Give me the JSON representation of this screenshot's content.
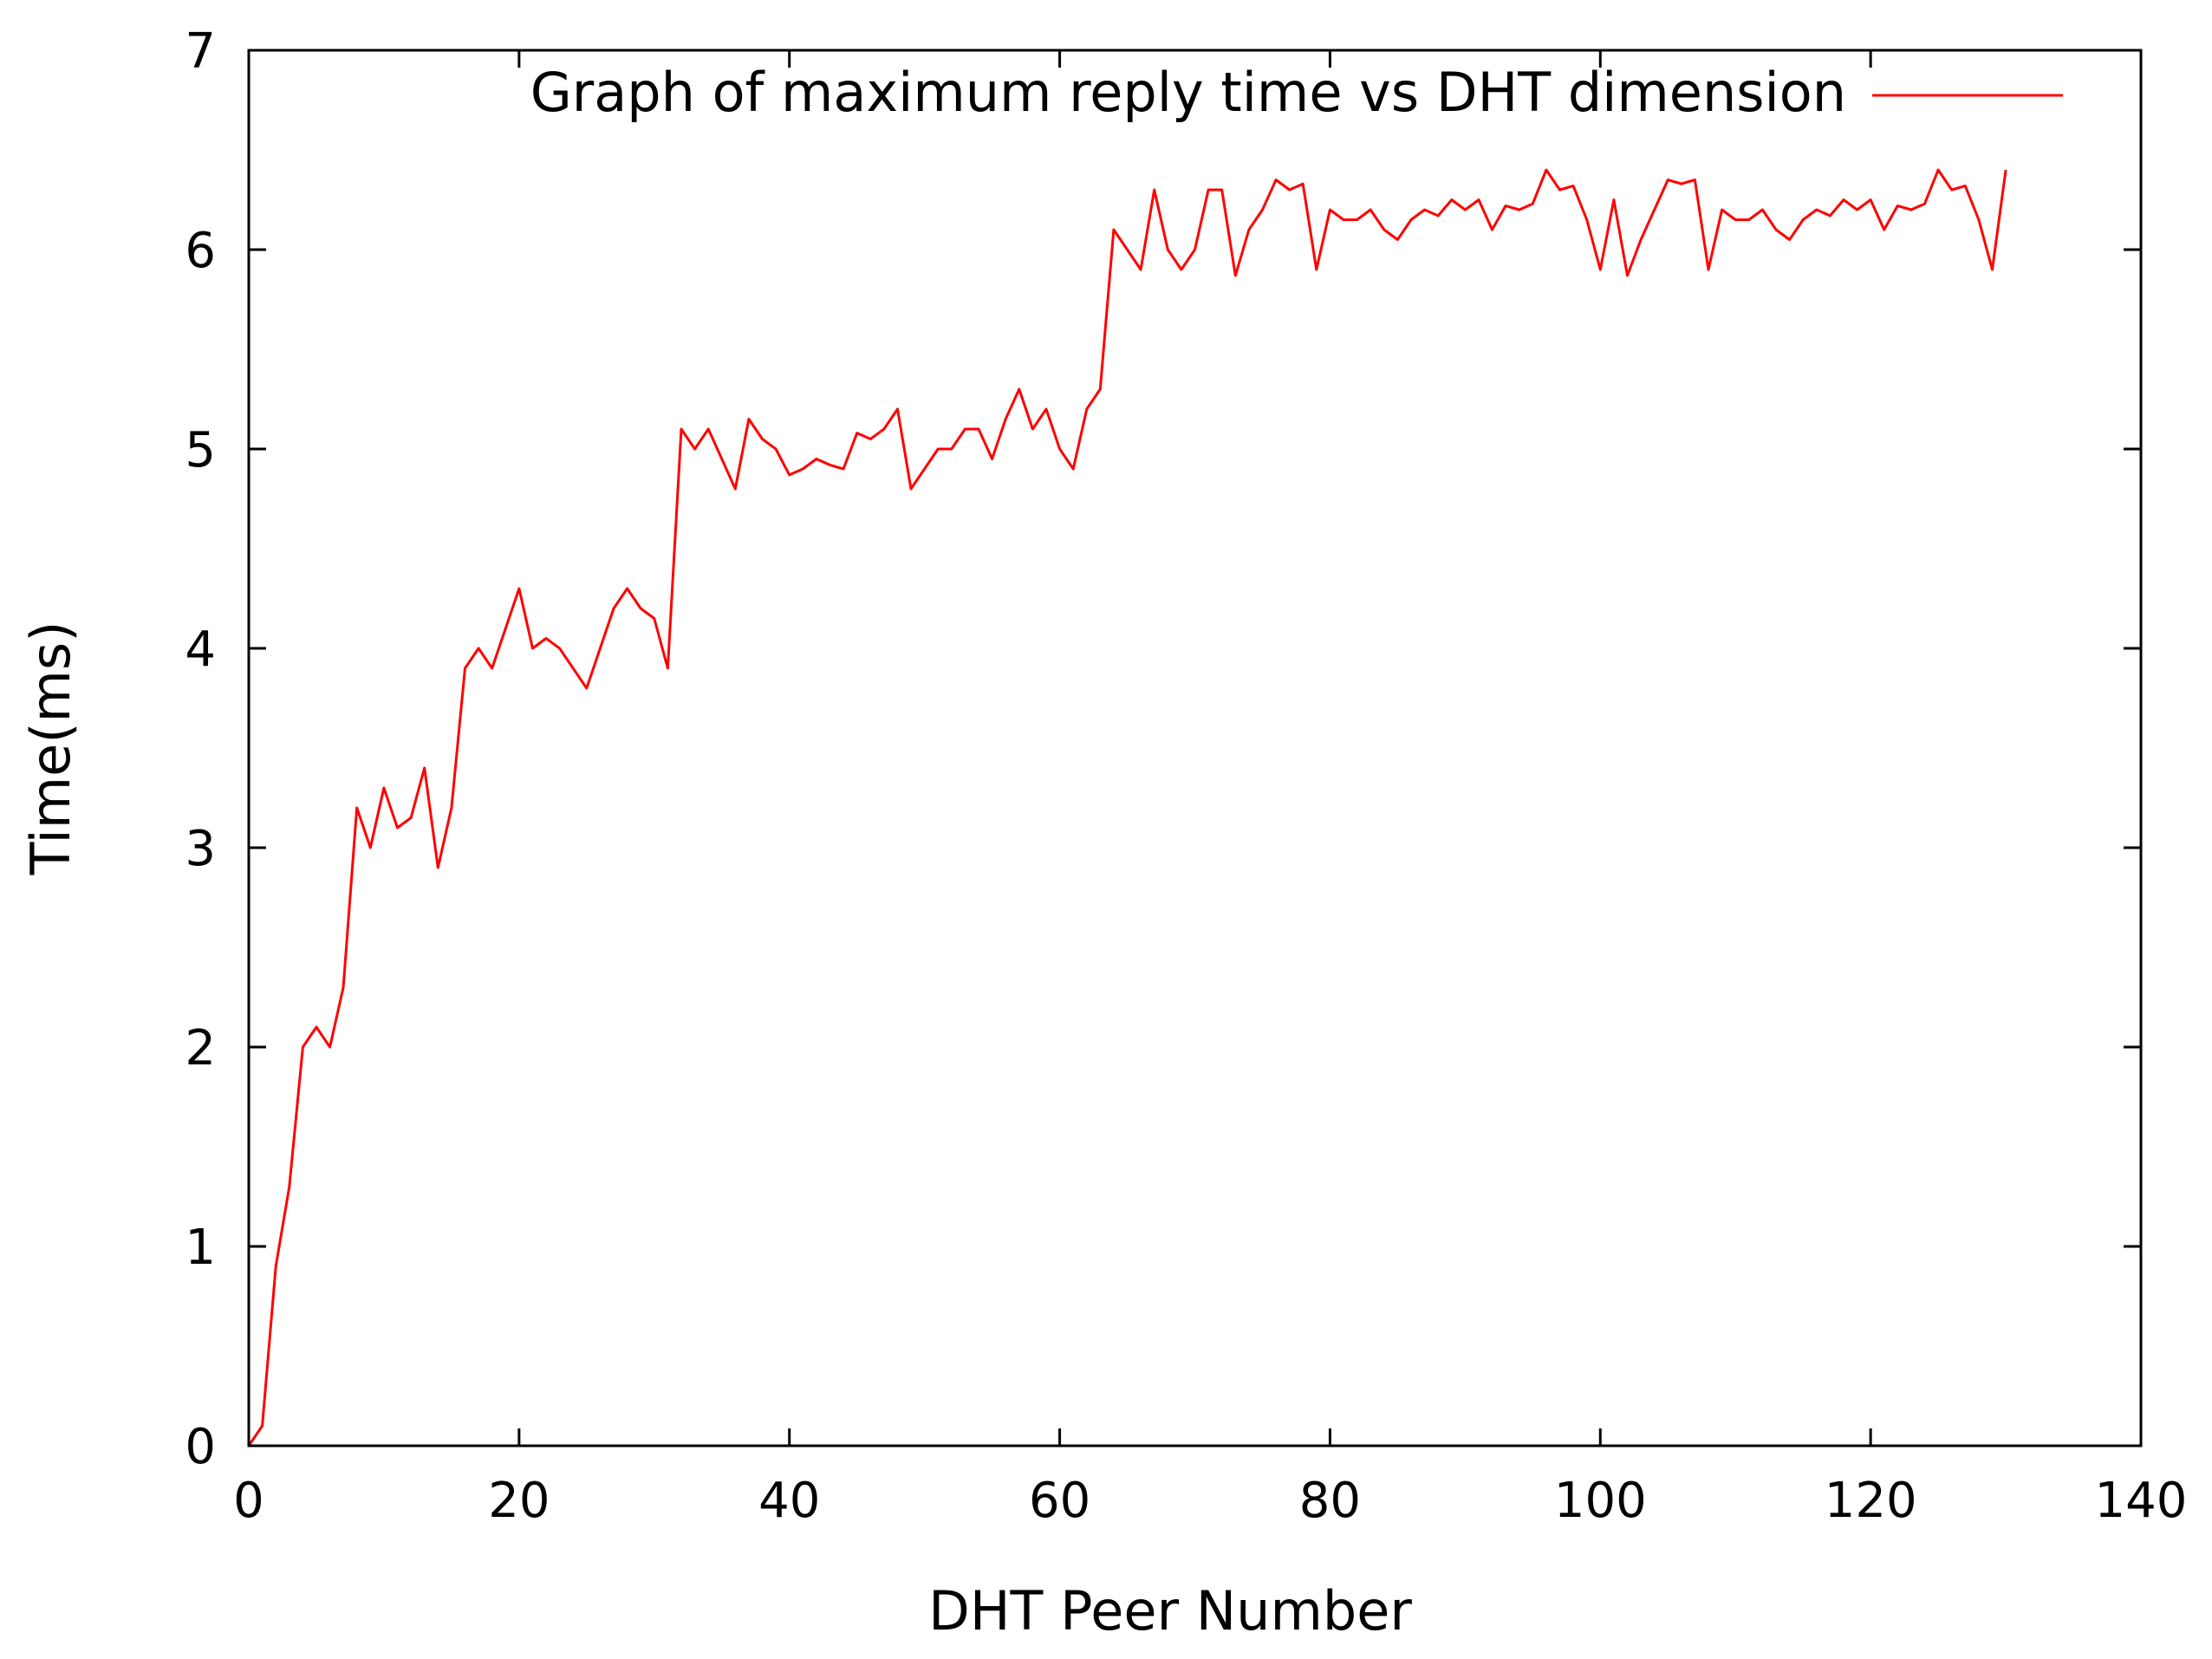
{
  "chart_data": {
    "type": "line",
    "xlabel": "DHT Peer Number",
    "ylabel": "Time(ms)",
    "xlim": [
      0,
      140
    ],
    "ylim": [
      0,
      7
    ],
    "xticks": [
      0,
      20,
      40,
      60,
      80,
      100,
      120,
      140
    ],
    "yticks": [
      0,
      1,
      2,
      3,
      4,
      5,
      6,
      7
    ],
    "grid": false,
    "legend_position": "top-right",
    "series": [
      {
        "name": "Graph of maximum reply time vs DHT dimension",
        "color": "#ff0000",
        "x": [
          0,
          1,
          2,
          3,
          4,
          5,
          6,
          7,
          8,
          9,
          10,
          11,
          12,
          13,
          14,
          15,
          16,
          17,
          18,
          19,
          20,
          21,
          22,
          23,
          24,
          25,
          26,
          27,
          28,
          29,
          30,
          31,
          32,
          33,
          34,
          35,
          36,
          37,
          38,
          39,
          40,
          41,
          42,
          43,
          44,
          45,
          46,
          47,
          48,
          49,
          50,
          51,
          52,
          53,
          54,
          55,
          56,
          57,
          58,
          59,
          60,
          61,
          62,
          63,
          64,
          65,
          66,
          67,
          68,
          69,
          70,
          71,
          72,
          73,
          74,
          75,
          76,
          77,
          78,
          79,
          80,
          81,
          82,
          83,
          84,
          85,
          86,
          87,
          88,
          89,
          90,
          91,
          92,
          93,
          94,
          95,
          96,
          97,
          98,
          99,
          100,
          101,
          102,
          103,
          104,
          105,
          106,
          107,
          108,
          109,
          110,
          111,
          112,
          113,
          114,
          115,
          116,
          117,
          118,
          119,
          120,
          121,
          122,
          123,
          124,
          125,
          126,
          127,
          128,
          129,
          130
        ],
        "y": [
          0,
          0.1,
          0.9,
          1.3,
          2.0,
          2.1,
          2.0,
          2.3,
          3.2,
          3.0,
          3.3,
          3.1,
          3.15,
          3.4,
          2.9,
          3.2,
          3.9,
          4.0,
          3.9,
          4.1,
          4.3,
          4.0,
          4.05,
          4.0,
          3.9,
          3.8,
          4.0,
          4.2,
          4.3,
          4.2,
          4.15,
          3.9,
          5.1,
          5.0,
          5.1,
          4.95,
          4.8,
          5.15,
          5.05,
          5.0,
          4.87,
          4.9,
          4.95,
          4.92,
          4.9,
          5.08,
          5.05,
          5.1,
          5.2,
          4.8,
          4.9,
          5.0,
          5.0,
          5.1,
          5.1,
          4.95,
          5.15,
          5.3,
          5.1,
          5.2,
          5.0,
          4.9,
          5.2,
          5.3,
          6.1,
          6.0,
          5.9,
          6.3,
          6.0,
          5.9,
          6.0,
          6.3,
          6.3,
          5.87,
          6.1,
          6.2,
          6.35,
          6.3,
          6.33,
          5.9,
          6.2,
          6.15,
          6.15,
          6.2,
          6.1,
          6.05,
          6.15,
          6.2,
          6.17,
          6.25,
          6.2,
          6.25,
          6.1,
          6.22,
          6.2,
          6.23,
          6.4,
          6.3,
          6.32,
          6.15,
          5.9,
          6.25,
          5.87,
          6.05,
          6.2,
          6.35,
          6.33,
          6.35,
          5.9,
          6.2,
          6.15,
          6.15,
          6.2,
          6.1,
          6.05,
          6.15,
          6.2,
          6.17,
          6.25,
          6.2,
          6.25,
          6.1,
          6.22,
          6.2,
          6.23,
          6.4,
          6.3,
          6.32,
          6.15,
          5.9,
          6.4
        ]
      }
    ]
  }
}
